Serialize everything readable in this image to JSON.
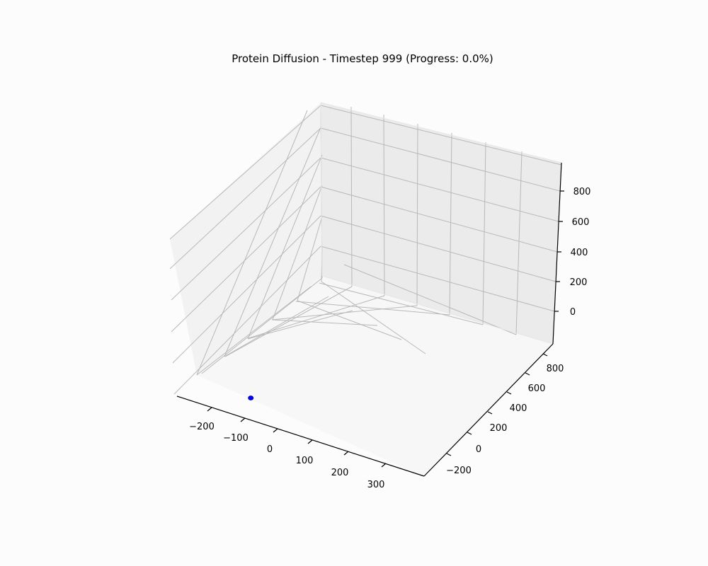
{
  "chart_data": {
    "type": "scatter",
    "title": "Protein Diffusion - Timestep 999 (Progress: 0.0%)",
    "xlabel": "",
    "ylabel": "",
    "zlabel": "",
    "x_ticks": [
      "−200",
      "−100",
      "0",
      "100",
      "200",
      "300"
    ],
    "y_ticks": [
      "−200",
      "0",
      "200",
      "400",
      "600",
      "800"
    ],
    "z_ticks": [
      "0",
      "200",
      "400",
      "600",
      "800"
    ],
    "grid": true,
    "point_color": "#0000ff",
    "points": [
      {
        "x": -30,
        "y": -120,
        "z": 10
      }
    ]
  }
}
